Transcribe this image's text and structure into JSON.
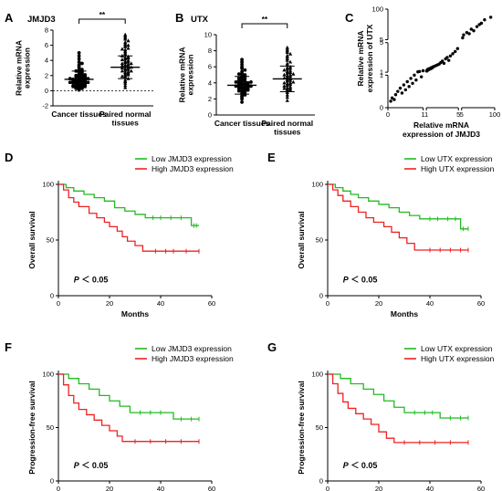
{
  "figure": {
    "panel_letters": [
      "A",
      "B",
      "C",
      "D",
      "E",
      "F",
      "G"
    ]
  },
  "chart_data": [
    {
      "panel": "A",
      "type": "scatter",
      "title": "JMJD3",
      "ylabel": "Relative mRNA expression",
      "categories": [
        "Cancer tissues",
        "Paired normal tissues"
      ],
      "ylim": [
        -2,
        8
      ],
      "yticks": [
        -2,
        0,
        2,
        4,
        6,
        8
      ],
      "reference_line": 0,
      "significance": "**",
      "series": [
        {
          "values": [
            0.1,
            0.2,
            0.3,
            0.3,
            0.4,
            0.5,
            0.5,
            0.6,
            0.6,
            0.7,
            0.7,
            0.8,
            0.8,
            0.9,
            0.9,
            1.0,
            1.0,
            1.0,
            1.1,
            1.1,
            1.2,
            1.2,
            1.2,
            1.3,
            1.3,
            1.4,
            1.4,
            1.4,
            1.5,
            1.5,
            1.6,
            1.6,
            1.7,
            1.7,
            1.8,
            1.8,
            1.9,
            2.0,
            2.0,
            2.1,
            2.2,
            2.3,
            2.4,
            2.5,
            2.6,
            2.7,
            2.8,
            3.0,
            3.2,
            3.4,
            3.6,
            3.8,
            4.2,
            4.6,
            5.0
          ],
          "mean": 1.5,
          "sd": 1.1
        },
        {
          "values": [
            0.4,
            0.7,
            1.0,
            1.2,
            1.4,
            1.6,
            1.8,
            2.0,
            2.1,
            2.2,
            2.4,
            2.5,
            2.6,
            2.7,
            2.8,
            2.9,
            3.0,
            3.0,
            3.1,
            3.2,
            3.3,
            3.4,
            3.5,
            3.6,
            3.6,
            3.7,
            3.8,
            3.9,
            4.0,
            4.1,
            4.2,
            4.3,
            4.4,
            4.5,
            4.6,
            4.8,
            5.0,
            5.2,
            5.4,
            5.6,
            5.8,
            6.0,
            6.2,
            6.4,
            6.6,
            6.8,
            7.0,
            7.2,
            7.4,
            6.0,
            5.5,
            3.3,
            2.3,
            1.9,
            2.6
          ],
          "mean": 3.1,
          "sd": 1.5
        }
      ]
    },
    {
      "panel": "B",
      "type": "scatter",
      "title": "UTX",
      "ylabel": "Relative mRNA expression",
      "categories": [
        "Cancer tissues",
        "Paired normal tissues"
      ],
      "ylim": [
        0,
        10
      ],
      "yticks": [
        0,
        2,
        4,
        6,
        8,
        10
      ],
      "significance": "**",
      "series": [
        {
          "values": [
            1.6,
            2.0,
            2.2,
            2.4,
            2.5,
            2.7,
            2.8,
            2.9,
            3.0,
            3.0,
            3.1,
            3.2,
            3.2,
            3.3,
            3.3,
            3.4,
            3.4,
            3.5,
            3.5,
            3.6,
            3.6,
            3.7,
            3.7,
            3.8,
            3.8,
            3.9,
            3.9,
            4.0,
            4.0,
            4.1,
            4.1,
            4.2,
            4.2,
            4.3,
            4.4,
            4.5,
            4.6,
            4.7,
            4.8,
            4.9,
            5.0,
            5.1,
            5.2,
            5.4,
            5.6,
            5.8,
            6.0,
            6.3,
            6.6,
            6.9
          ],
          "mean": 3.7,
          "sd": 1.1
        },
        {
          "values": [
            1.8,
            2.2,
            2.5,
            2.8,
            3.0,
            3.1,
            3.2,
            3.3,
            3.4,
            3.5,
            3.6,
            3.7,
            3.8,
            3.9,
            4.0,
            4.0,
            4.1,
            4.2,
            4.3,
            4.4,
            4.5,
            4.6,
            4.7,
            4.8,
            4.9,
            5.0,
            5.0,
            5.1,
            5.2,
            5.3,
            5.4,
            5.5,
            5.6,
            5.7,
            5.8,
            5.9,
            6.0,
            6.2,
            6.4,
            6.6,
            6.8,
            7.0,
            7.2,
            7.4,
            7.6,
            7.8,
            8.0,
            8.2,
            8.4,
            3.3
          ],
          "mean": 4.5,
          "sd": 1.6
        }
      ]
    },
    {
      "panel": "C",
      "type": "scatter",
      "xlabel": "Relative mRNA expression of JMJD3",
      "ylabel": "Relative mRNA expression of UTX",
      "xscale": "broken-log",
      "yscale": "broken-log",
      "xticks": [
        "0",
        "1",
        "1",
        "5",
        "5",
        "100"
      ],
      "yticks": [
        "0",
        "1",
        "1",
        "5",
        "5",
        "100"
      ],
      "points": [
        [
          0.08,
          0.2
        ],
        [
          0.12,
          0.3
        ],
        [
          0.18,
          0.25
        ],
        [
          0.22,
          0.4
        ],
        [
          0.28,
          0.5
        ],
        [
          0.35,
          0.6
        ],
        [
          0.4,
          0.45
        ],
        [
          0.45,
          0.7
        ],
        [
          0.5,
          0.55
        ],
        [
          0.55,
          0.8
        ],
        [
          0.6,
          0.65
        ],
        [
          0.65,
          0.9
        ],
        [
          0.7,
          0.75
        ],
        [
          0.75,
          1.0
        ],
        [
          0.8,
          0.85
        ],
        [
          0.85,
          1.05
        ],
        [
          0.9,
          1.1
        ],
        [
          0.95,
          0.95
        ],
        [
          1.0,
          1.2
        ],
        [
          1.05,
          1.15
        ],
        [
          1.1,
          1.3
        ],
        [
          1.15,
          1.25
        ],
        [
          1.2,
          1.4
        ],
        [
          1.3,
          1.35
        ],
        [
          1.4,
          1.5
        ],
        [
          1.5,
          1.45
        ],
        [
          1.6,
          1.6
        ],
        [
          1.7,
          1.55
        ],
        [
          1.8,
          1.7
        ],
        [
          1.9,
          1.75
        ],
        [
          2.0,
          1.8
        ],
        [
          2.2,
          1.9
        ],
        [
          2.4,
          2.0
        ],
        [
          2.6,
          2.1
        ],
        [
          2.8,
          2.3
        ],
        [
          3.0,
          2.5
        ],
        [
          3.2,
          2.2
        ],
        [
          3.4,
          2.8
        ],
        [
          3.6,
          3.0
        ],
        [
          3.8,
          2.6
        ],
        [
          4.0,
          3.2
        ],
        [
          4.3,
          3.5
        ],
        [
          4.6,
          3.8
        ],
        [
          4.9,
          4.2
        ],
        [
          5.5,
          6
        ],
        [
          6,
          8
        ],
        [
          8,
          10
        ],
        [
          10,
          9
        ],
        [
          12,
          14
        ],
        [
          15,
          12
        ],
        [
          20,
          18
        ],
        [
          25,
          22
        ],
        [
          30,
          25
        ],
        [
          40,
          35
        ],
        [
          70,
          45
        ]
      ]
    },
    {
      "panel": "D",
      "type": "line",
      "ylabel": "Overall survival",
      "xlabel": "Months",
      "xlim": [
        0,
        60
      ],
      "xticks": [
        0,
        20,
        40,
        60
      ],
      "ylim": [
        0,
        100
      ],
      "yticks": [
        0,
        50,
        100
      ],
      "annotation_p": "P",
      "annotation_rest": "＜ 0.05",
      "series": [
        {
          "name": "Low JMJD3 expression",
          "color": "#22bb22",
          "steps": [
            [
              0,
              100
            ],
            [
              3,
              97
            ],
            [
              6,
              94
            ],
            [
              10,
              91
            ],
            [
              14,
              88
            ],
            [
              18,
              85
            ],
            [
              22,
              79
            ],
            [
              26,
              76
            ],
            [
              30,
              73
            ],
            [
              34,
              70
            ],
            [
              52,
              63
            ],
            [
              55,
              63
            ]
          ],
          "censors": [
            37,
            40,
            44,
            48,
            53,
            54
          ]
        },
        {
          "name": "High JMJD3 expression",
          "color": "#ee2222",
          "steps": [
            [
              0,
              100
            ],
            [
              2,
              95
            ],
            [
              4,
              88
            ],
            [
              6,
              84
            ],
            [
              8,
              80
            ],
            [
              12,
              74
            ],
            [
              15,
              70
            ],
            [
              18,
              66
            ],
            [
              20,
              62
            ],
            [
              23,
              58
            ],
            [
              25,
              53
            ],
            [
              27,
              49
            ],
            [
              30,
              45
            ],
            [
              33,
              40
            ],
            [
              36,
              40
            ],
            [
              55,
              40
            ]
          ],
          "censors": [
            38,
            42,
            45,
            50,
            55
          ]
        }
      ]
    },
    {
      "panel": "E",
      "type": "line",
      "ylabel": "Overall survival",
      "xlabel": "Months",
      "xlim": [
        0,
        60
      ],
      "xticks": [
        0,
        20,
        40,
        60
      ],
      "ylim": [
        0,
        100
      ],
      "yticks": [
        0,
        50,
        100
      ],
      "annotation_p": "P",
      "annotation_rest": "＜ 0.05",
      "series": [
        {
          "name": "Low UTX expression",
          "color": "#22bb22",
          "steps": [
            [
              0,
              100
            ],
            [
              3,
              97
            ],
            [
              6,
              94
            ],
            [
              9,
              91
            ],
            [
              12,
              88
            ],
            [
              16,
              85
            ],
            [
              20,
              82
            ],
            [
              24,
              79
            ],
            [
              28,
              75
            ],
            [
              32,
              72
            ],
            [
              36,
              69
            ],
            [
              52,
              60
            ],
            [
              55,
              60
            ]
          ],
          "censors": [
            40,
            43,
            47,
            50,
            53,
            55
          ]
        },
        {
          "name": "High UTX expression",
          "color": "#ee2222",
          "steps": [
            [
              0,
              100
            ],
            [
              2,
              95
            ],
            [
              4,
              90
            ],
            [
              6,
              85
            ],
            [
              9,
              80
            ],
            [
              12,
              75
            ],
            [
              15,
              70
            ],
            [
              18,
              66
            ],
            [
              22,
              62
            ],
            [
              25,
              57
            ],
            [
              28,
              52
            ],
            [
              31,
              47
            ],
            [
              34,
              41
            ],
            [
              38,
              41
            ],
            [
              55,
              41
            ]
          ],
          "censors": [
            40,
            44,
            48,
            52,
            55
          ]
        }
      ]
    },
    {
      "panel": "F",
      "type": "line",
      "ylabel": "Progression-free survival",
      "xlabel": "Months",
      "xlim": [
        0,
        60
      ],
      "xticks": [
        0,
        20,
        40,
        60
      ],
      "ylim": [
        0,
        100
      ],
      "yticks": [
        0,
        50,
        100
      ],
      "annotation_p": "P",
      "annotation_rest": "＜ 0.05",
      "series": [
        {
          "name": "Low JMJD3 expression",
          "color": "#22bb22",
          "steps": [
            [
              0,
              100
            ],
            [
              4,
              96
            ],
            [
              8,
              91
            ],
            [
              12,
              86
            ],
            [
              16,
              80
            ],
            [
              20,
              75
            ],
            [
              24,
              70
            ],
            [
              28,
              64
            ],
            [
              45,
              58
            ],
            [
              55,
              58
            ]
          ],
          "censors": [
            32,
            36,
            40,
            48,
            52,
            55
          ]
        },
        {
          "name": "High JMJD3 expression",
          "color": "#ee2222",
          "steps": [
            [
              0,
              100
            ],
            [
              2,
              90
            ],
            [
              4,
              80
            ],
            [
              6,
              73
            ],
            [
              8,
              67
            ],
            [
              11,
              62
            ],
            [
              14,
              57
            ],
            [
              17,
              52
            ],
            [
              20,
              47
            ],
            [
              23,
              42
            ],
            [
              25,
              37
            ],
            [
              55,
              37
            ]
          ],
          "censors": [
            30,
            36,
            42,
            48,
            55
          ]
        }
      ]
    },
    {
      "panel": "G",
      "type": "line",
      "ylabel": "Progression-free survival",
      "xlabel": "Months",
      "xlim": [
        0,
        60
      ],
      "xticks": [
        0,
        20,
        40,
        60
      ],
      "ylim": [
        0,
        100
      ],
      "yticks": [
        0,
        50,
        100
      ],
      "annotation_p": "P",
      "annotation_rest": "＜ 0.05",
      "series": [
        {
          "name": "Low UTX expression",
          "color": "#22bb22",
          "steps": [
            [
              0,
              100
            ],
            [
              5,
              96
            ],
            [
              9,
              91
            ],
            [
              14,
              86
            ],
            [
              18,
              81
            ],
            [
              22,
              75
            ],
            [
              26,
              69
            ],
            [
              30,
              64
            ],
            [
              44,
              59
            ],
            [
              55,
              59
            ]
          ],
          "censors": [
            34,
            38,
            41,
            48,
            52,
            55
          ]
        },
        {
          "name": "High UTX expression",
          "color": "#ee2222",
          "steps": [
            [
              0,
              100
            ],
            [
              2,
              91
            ],
            [
              4,
              82
            ],
            [
              6,
              74
            ],
            [
              8,
              68
            ],
            [
              11,
              63
            ],
            [
              14,
              58
            ],
            [
              17,
              53
            ],
            [
              20,
              46
            ],
            [
              23,
              40
            ],
            [
              26,
              36
            ],
            [
              55,
              36
            ]
          ],
          "censors": [
            30,
            36,
            42,
            48,
            55
          ]
        }
      ]
    }
  ]
}
